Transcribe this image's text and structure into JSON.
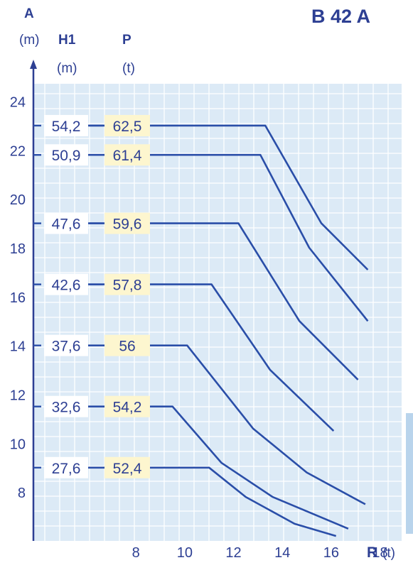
{
  "header": {
    "model": "B 42 A",
    "y_axis_letter": "A",
    "y_axis_unit": "(m)",
    "col1_letter": "H1",
    "col1_unit": "(m)",
    "col2_letter": "P",
    "col2_unit": "(t)",
    "x_axis_letter": "R",
    "x_axis_unit": "(t)"
  },
  "colors": {
    "grid_bg": "#dceaf6",
    "grid_line": "#ffffff",
    "curve": "#2a4ea8",
    "label_bg_p": "#fdf6cf",
    "label_bg_h": "#ffffff",
    "text": "#2d3f93",
    "right_tab": "#b9d4ec"
  },
  "chart_data": {
    "type": "line",
    "title": "B 42 A",
    "xlabel": "R (t)",
    "ylabel": "A (m)",
    "xlim": [
      3.8,
      18.8
    ],
    "ylim": [
      6.0,
      24.8
    ],
    "x_ticks": [
      8,
      10,
      12,
      14,
      16,
      18
    ],
    "y_ticks": [
      8,
      10,
      12,
      14,
      16,
      18,
      20,
      22,
      24
    ],
    "series": [
      {
        "h1": "54,2",
        "p": "62,5",
        "label_y": 23.0,
        "points": [
          [
            6.0,
            23.0
          ],
          [
            13.3,
            23.0
          ],
          [
            15.6,
            19.0
          ],
          [
            17.5,
            17.1
          ]
        ]
      },
      {
        "h1": "50,9",
        "p": "61,4",
        "label_y": 21.8,
        "points": [
          [
            6.0,
            21.8
          ],
          [
            13.1,
            21.8
          ],
          [
            15.1,
            18.0
          ],
          [
            17.5,
            15.0
          ]
        ]
      },
      {
        "h1": "47,6",
        "p": "59,6",
        "label_y": 19.0,
        "points": [
          [
            6.0,
            19.0
          ],
          [
            12.2,
            19.0
          ],
          [
            14.7,
            15.0
          ],
          [
            17.1,
            12.6
          ]
        ]
      },
      {
        "h1": "42,6",
        "p": "57,8",
        "label_y": 16.5,
        "points": [
          [
            6.0,
            16.5
          ],
          [
            11.1,
            16.5
          ],
          [
            13.5,
            13.0
          ],
          [
            16.1,
            10.5
          ]
        ]
      },
      {
        "h1": "37,6",
        "p": "56",
        "label_y": 14.0,
        "points": [
          [
            6.0,
            14.0
          ],
          [
            10.1,
            14.0
          ],
          [
            12.8,
            10.6
          ],
          [
            15.0,
            8.8
          ],
          [
            17.4,
            7.5
          ]
        ]
      },
      {
        "h1": "32,6",
        "p": "54,2",
        "label_y": 11.5,
        "points": [
          [
            6.0,
            11.5
          ],
          [
            9.5,
            11.5
          ],
          [
            11.5,
            9.2
          ],
          [
            13.6,
            7.8
          ],
          [
            16.7,
            6.5
          ]
        ]
      },
      {
        "h1": "27,6",
        "p": "52,4",
        "label_y": 9.0,
        "points": [
          [
            6.0,
            9.0
          ],
          [
            11.0,
            9.0
          ],
          [
            12.5,
            7.8
          ],
          [
            14.5,
            6.7
          ],
          [
            16.2,
            6.2
          ]
        ]
      }
    ]
  }
}
